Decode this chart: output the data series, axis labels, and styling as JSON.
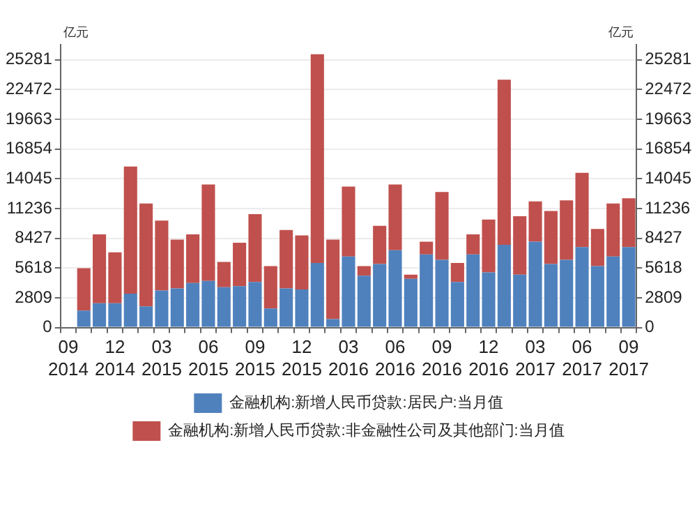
{
  "chart_data": {
    "type": "bar",
    "stacked": true,
    "categories": [
      "09 2014",
      null,
      null,
      "12 2014",
      null,
      null,
      "03 2015",
      null,
      null,
      "06 2015",
      null,
      null,
      "09 2015",
      null,
      null,
      "12 2015",
      null,
      null,
      "03 2016",
      null,
      null,
      "06 2016",
      null,
      null,
      "09 2016",
      null,
      null,
      "12 2016",
      null,
      null,
      "03 2017",
      null,
      null,
      "06 2017",
      null,
      null,
      "09 2017"
    ],
    "series": [
      {
        "name": "金融机构:新增人民币贷款:居民户:当月值",
        "color": "#4f81bd",
        "values": [
          null,
          1600,
          2300,
          2300,
          3200,
          2000,
          3500,
          3700,
          4200,
          4400,
          3800,
          3900,
          4300,
          1800,
          3700,
          3600,
          6100,
          800,
          6700,
          4900,
          6000,
          7300,
          4600,
          6900,
          6400,
          4300,
          6900,
          5200,
          7800,
          5000,
          8100,
          6000,
          6400,
          7600,
          5800,
          6700,
          7600
        ]
      },
      {
        "name": "金融机构:新增人民币贷款:非金融性公司及其他部门:当月值",
        "color": "#c0504d",
        "values": [
          null,
          4000,
          6500,
          4800,
          12000,
          9700,
          6600,
          4600,
          4600,
          9100,
          2400,
          4100,
          6400,
          4000,
          5500,
          5100,
          19700,
          7500,
          6600,
          900,
          3600,
          6200,
          400,
          1200,
          6400,
          1800,
          1900,
          5000,
          15600,
          5500,
          3800,
          5000,
          5600,
          7000,
          3500,
          5000,
          4600
        ]
      }
    ],
    "ylim": [
      0,
      26700
    ],
    "yticks": [
      0,
      2809,
      5618,
      8427,
      11236,
      14045,
      16854,
      19663,
      22472,
      25281
    ],
    "y2lim": [
      0,
      26700
    ],
    "y2ticks": [
      0,
      2809,
      5618,
      8427,
      11236,
      14045,
      16854,
      19663,
      22472,
      25281
    ],
    "ylabel": "亿元",
    "y2label": "亿元",
    "grid": "y",
    "legend": "bottom"
  }
}
